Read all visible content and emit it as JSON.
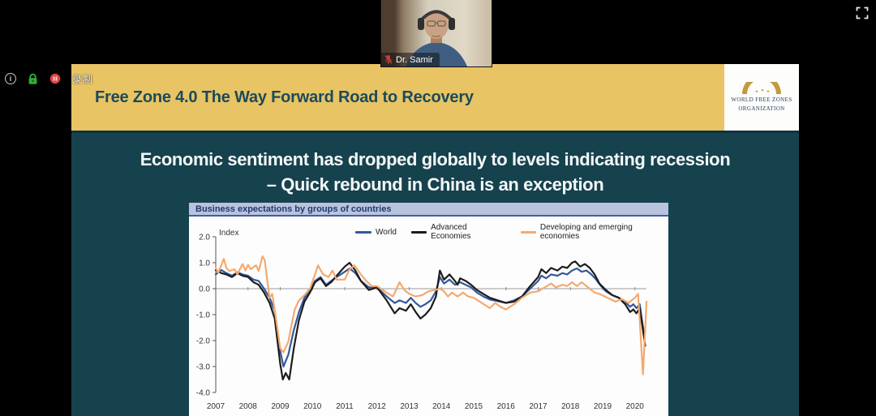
{
  "window": {
    "recording_label": "录制",
    "statusbar_icons": [
      "info-icon",
      "lock-icon",
      "record-icon"
    ],
    "fullscreen_icon": "fullscreen-expand-icon"
  },
  "webcam": {
    "name": "Dr. Samir",
    "muted": true,
    "mic_icon": "mic-muted-icon"
  },
  "slide": {
    "header_title": "Free Zone 4.0 The Way Forward Road to Recovery",
    "logo": {
      "line1": "WORLD FREE ZONES",
      "line2": "ORGANIZATION"
    },
    "title_line1": "Economic sentiment has dropped globally to levels indicating recession",
    "title_line2": "– Quick rebound in China is an exception"
  },
  "colors": {
    "gold_header": "#e8c465",
    "slide_teal": "#16424e",
    "chart_header_bg": "#b9c3de",
    "chart_header_text": "#1e3a6e",
    "zero_line": "#9b9b9b"
  },
  "chart_data": {
    "type": "line",
    "title": "Business expectations by groups of countries",
    "ylabel": "Index",
    "ylim": [
      -4.0,
      2.0
    ],
    "xlim": [
      2007,
      2020.45
    ],
    "ytick_values": [
      2,
      1,
      0,
      -1,
      -2,
      -3,
      -4
    ],
    "ytick_labels": [
      "2.0",
      "1.0",
      "0.0",
      "-1.0",
      "-2.0",
      "-3.0",
      "-4.0"
    ],
    "xticks": [
      2007,
      2008,
      2009,
      2010,
      2011,
      2012,
      2013,
      2014,
      2015,
      2016,
      2017,
      2018,
      2019,
      2020
    ],
    "grid": "zero-line-only",
    "legend_position": "top-right",
    "series": [
      {
        "name": "World",
        "color": "#34599c",
        "points": [
          [
            2007.0,
            0.55
          ],
          [
            2007.17,
            0.72
          ],
          [
            2007.33,
            0.6
          ],
          [
            2007.5,
            0.5
          ],
          [
            2007.67,
            0.63
          ],
          [
            2007.83,
            0.55
          ],
          [
            2008.0,
            0.5
          ],
          [
            2008.17,
            0.35
          ],
          [
            2008.33,
            0.3
          ],
          [
            2008.5,
            0.0
          ],
          [
            2008.67,
            -0.35
          ],
          [
            2008.83,
            -0.85
          ],
          [
            2009.0,
            -2.4
          ],
          [
            2009.1,
            -3.0
          ],
          [
            2009.25,
            -2.55
          ],
          [
            2009.42,
            -1.6
          ],
          [
            2009.58,
            -0.9
          ],
          [
            2009.75,
            -0.35
          ],
          [
            2009.92,
            -0.05
          ],
          [
            2010.08,
            0.3
          ],
          [
            2010.25,
            0.45
          ],
          [
            2010.42,
            0.15
          ],
          [
            2010.58,
            0.3
          ],
          [
            2010.75,
            0.45
          ],
          [
            2011.0,
            0.65
          ],
          [
            2011.15,
            0.78
          ],
          [
            2011.33,
            0.6
          ],
          [
            2011.5,
            0.3
          ],
          [
            2011.75,
            0.05
          ],
          [
            2012.0,
            0.05
          ],
          [
            2012.3,
            -0.3
          ],
          [
            2012.55,
            -0.55
          ],
          [
            2012.7,
            -0.45
          ],
          [
            2012.9,
            -0.55
          ],
          [
            2013.05,
            -0.35
          ],
          [
            2013.2,
            -0.55
          ],
          [
            2013.35,
            -0.7
          ],
          [
            2013.5,
            -0.6
          ],
          [
            2013.67,
            -0.45
          ],
          [
            2013.83,
            -0.1
          ],
          [
            2013.95,
            0.45
          ],
          [
            2014.08,
            0.2
          ],
          [
            2014.25,
            0.35
          ],
          [
            2014.42,
            0.15
          ],
          [
            2014.58,
            0.25
          ],
          [
            2014.75,
            0.15
          ],
          [
            2014.92,
            0.05
          ],
          [
            2015.1,
            -0.15
          ],
          [
            2015.3,
            -0.3
          ],
          [
            2015.5,
            -0.42
          ],
          [
            2015.75,
            -0.48
          ],
          [
            2016.0,
            -0.55
          ],
          [
            2016.25,
            -0.45
          ],
          [
            2016.5,
            -0.3
          ],
          [
            2016.75,
            0.0
          ],
          [
            2017.0,
            0.3
          ],
          [
            2017.1,
            0.5
          ],
          [
            2017.25,
            0.4
          ],
          [
            2017.4,
            0.55
          ],
          [
            2017.6,
            0.5
          ],
          [
            2017.75,
            0.6
          ],
          [
            2017.9,
            0.55
          ],
          [
            2018.05,
            0.7
          ],
          [
            2018.2,
            0.78
          ],
          [
            2018.35,
            0.65
          ],
          [
            2018.5,
            0.7
          ],
          [
            2018.65,
            0.55
          ],
          [
            2018.8,
            0.35
          ],
          [
            2018.95,
            0.1
          ],
          [
            2019.1,
            -0.1
          ],
          [
            2019.3,
            -0.25
          ],
          [
            2019.5,
            -0.35
          ],
          [
            2019.7,
            -0.5
          ],
          [
            2019.85,
            -0.7
          ],
          [
            2019.95,
            -0.6
          ],
          [
            2020.05,
            -0.75
          ],
          [
            2020.15,
            -0.6
          ],
          [
            2020.3,
            -1.9
          ]
        ]
      },
      {
        "name": "Advanced Economies",
        "color": "#1c1c1c",
        "points": [
          [
            2007.0,
            0.72
          ],
          [
            2007.17,
            0.6
          ],
          [
            2007.33,
            0.55
          ],
          [
            2007.5,
            0.45
          ],
          [
            2007.67,
            0.6
          ],
          [
            2007.83,
            0.5
          ],
          [
            2008.0,
            0.45
          ],
          [
            2008.17,
            0.25
          ],
          [
            2008.33,
            0.15
          ],
          [
            2008.5,
            -0.15
          ],
          [
            2008.67,
            -0.55
          ],
          [
            2008.83,
            -1.15
          ],
          [
            2009.0,
            -2.9
          ],
          [
            2009.08,
            -3.5
          ],
          [
            2009.17,
            -3.25
          ],
          [
            2009.28,
            -3.5
          ],
          [
            2009.42,
            -2.3
          ],
          [
            2009.58,
            -1.2
          ],
          [
            2009.75,
            -0.5
          ],
          [
            2009.92,
            -0.15
          ],
          [
            2010.08,
            0.25
          ],
          [
            2010.25,
            0.4
          ],
          [
            2010.42,
            0.1
          ],
          [
            2010.58,
            0.25
          ],
          [
            2010.75,
            0.5
          ],
          [
            2011.0,
            0.85
          ],
          [
            2011.15,
            1.0
          ],
          [
            2011.33,
            0.7
          ],
          [
            2011.5,
            0.3
          ],
          [
            2011.75,
            -0.05
          ],
          [
            2012.0,
            0.05
          ],
          [
            2012.3,
            -0.45
          ],
          [
            2012.55,
            -0.95
          ],
          [
            2012.7,
            -0.75
          ],
          [
            2012.9,
            -0.85
          ],
          [
            2013.05,
            -0.6
          ],
          [
            2013.2,
            -0.9
          ],
          [
            2013.35,
            -1.15
          ],
          [
            2013.5,
            -1.0
          ],
          [
            2013.67,
            -0.75
          ],
          [
            2013.83,
            -0.3
          ],
          [
            2013.95,
            0.7
          ],
          [
            2014.08,
            0.35
          ],
          [
            2014.25,
            0.55
          ],
          [
            2014.42,
            0.3
          ],
          [
            2014.5,
            0.15
          ],
          [
            2014.58,
            0.4
          ],
          [
            2014.75,
            0.3
          ],
          [
            2014.92,
            0.15
          ],
          [
            2015.1,
            -0.05
          ],
          [
            2015.3,
            -0.2
          ],
          [
            2015.5,
            -0.35
          ],
          [
            2015.75,
            -0.45
          ],
          [
            2016.0,
            -0.55
          ],
          [
            2016.25,
            -0.5
          ],
          [
            2016.5,
            -0.3
          ],
          [
            2016.75,
            0.1
          ],
          [
            2017.0,
            0.45
          ],
          [
            2017.1,
            0.75
          ],
          [
            2017.25,
            0.6
          ],
          [
            2017.4,
            0.8
          ],
          [
            2017.6,
            0.7
          ],
          [
            2017.75,
            0.85
          ],
          [
            2017.9,
            0.8
          ],
          [
            2018.05,
            1.0
          ],
          [
            2018.15,
            1.05
          ],
          [
            2018.3,
            0.85
          ],
          [
            2018.45,
            0.95
          ],
          [
            2018.6,
            0.8
          ],
          [
            2018.75,
            0.55
          ],
          [
            2018.9,
            0.2
          ],
          [
            2019.1,
            -0.05
          ],
          [
            2019.3,
            -0.25
          ],
          [
            2019.5,
            -0.35
          ],
          [
            2019.7,
            -0.6
          ],
          [
            2019.85,
            -0.9
          ],
          [
            2019.95,
            -0.8
          ],
          [
            2020.05,
            -0.95
          ],
          [
            2020.15,
            -0.75
          ],
          [
            2020.32,
            -2.2
          ]
        ]
      },
      {
        "name": "Developing and emerging economies",
        "color": "#f4a96f",
        "points": [
          [
            2007.0,
            0.8
          ],
          [
            2007.08,
            0.62
          ],
          [
            2007.25,
            1.15
          ],
          [
            2007.33,
            0.8
          ],
          [
            2007.42,
            0.68
          ],
          [
            2007.58,
            0.75
          ],
          [
            2007.67,
            0.55
          ],
          [
            2007.83,
            0.95
          ],
          [
            2007.92,
            0.7
          ],
          [
            2008.0,
            0.92
          ],
          [
            2008.08,
            0.75
          ],
          [
            2008.25,
            0.9
          ],
          [
            2008.33,
            0.68
          ],
          [
            2008.45,
            1.25
          ],
          [
            2008.52,
            1.1
          ],
          [
            2008.6,
            0.3
          ],
          [
            2008.67,
            -0.35
          ],
          [
            2008.75,
            -0.2
          ],
          [
            2008.85,
            -1.0
          ],
          [
            2009.0,
            -2.3
          ],
          [
            2009.1,
            -2.45
          ],
          [
            2009.25,
            -2.05
          ],
          [
            2009.35,
            -1.4
          ],
          [
            2009.45,
            -0.8
          ],
          [
            2009.58,
            -0.45
          ],
          [
            2009.75,
            -0.25
          ],
          [
            2009.92,
            0.0
          ],
          [
            2010.08,
            0.55
          ],
          [
            2010.17,
            0.9
          ],
          [
            2010.33,
            0.55
          ],
          [
            2010.5,
            0.45
          ],
          [
            2010.62,
            0.7
          ],
          [
            2010.75,
            0.35
          ],
          [
            2011.0,
            0.35
          ],
          [
            2011.15,
            0.75
          ],
          [
            2011.3,
            0.9
          ],
          [
            2011.5,
            0.55
          ],
          [
            2011.67,
            0.3
          ],
          [
            2011.83,
            0.1
          ],
          [
            2012.0,
            0.1
          ],
          [
            2012.3,
            -0.15
          ],
          [
            2012.5,
            -0.3
          ],
          [
            2012.7,
            0.25
          ],
          [
            2012.85,
            -0.05
          ],
          [
            2013.0,
            -0.2
          ],
          [
            2013.2,
            -0.3
          ],
          [
            2013.4,
            -0.25
          ],
          [
            2013.6,
            -0.1
          ],
          [
            2013.8,
            -0.05
          ],
          [
            2013.95,
            0.0
          ],
          [
            2014.08,
            -0.1
          ],
          [
            2014.2,
            -0.3
          ],
          [
            2014.33,
            -0.15
          ],
          [
            2014.5,
            -0.3
          ],
          [
            2014.67,
            -0.15
          ],
          [
            2014.83,
            -0.3
          ],
          [
            2015.0,
            -0.35
          ],
          [
            2015.25,
            -0.55
          ],
          [
            2015.5,
            -0.75
          ],
          [
            2015.67,
            -0.55
          ],
          [
            2015.83,
            -0.7
          ],
          [
            2016.0,
            -0.8
          ],
          [
            2016.25,
            -0.6
          ],
          [
            2016.5,
            -0.35
          ],
          [
            2016.75,
            -0.15
          ],
          [
            2017.0,
            -0.1
          ],
          [
            2017.2,
            0.05
          ],
          [
            2017.4,
            0.2
          ],
          [
            2017.55,
            0.05
          ],
          [
            2017.75,
            0.15
          ],
          [
            2017.9,
            0.1
          ],
          [
            2018.05,
            0.25
          ],
          [
            2018.2,
            0.1
          ],
          [
            2018.35,
            0.25
          ],
          [
            2018.55,
            0.05
          ],
          [
            2018.75,
            -0.15
          ],
          [
            2018.9,
            -0.2
          ],
          [
            2019.15,
            -0.35
          ],
          [
            2019.4,
            -0.5
          ],
          [
            2019.6,
            -0.4
          ],
          [
            2019.8,
            -0.55
          ],
          [
            2019.9,
            -0.45
          ],
          [
            2020.0,
            -0.35
          ],
          [
            2020.1,
            -0.2
          ],
          [
            2020.25,
            -3.3
          ],
          [
            2020.36,
            -0.5
          ]
        ]
      }
    ]
  }
}
